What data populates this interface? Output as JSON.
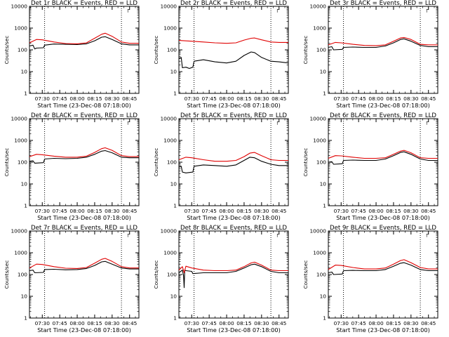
{
  "page": {
    "background": "#ffffff"
  },
  "colors": {
    "events": "#000000",
    "lld": "#e00000",
    "axes": "#000000"
  },
  "chart_data": [
    {
      "type": "line",
      "title": "Det 1r BLACK = Events, RED = LLD",
      "xlabel": "Start Time (23-Dec-08 07:18:00)",
      "ylabel": "Counts/sec",
      "xlim": [
        "07:19",
        "08:53"
      ],
      "ylim": [
        1,
        10000
      ],
      "yscale": "log",
      "grid": false,
      "x_ticks": [
        "07:30",
        "07:45",
        "08:00",
        "08:15",
        "08:30",
        "08:45"
      ],
      "y_ticks": [
        "1",
        "10",
        "100",
        "1000",
        "10000"
      ],
      "vlines_dotted": [
        "07:32",
        "08:38"
      ],
      "corner_mark": "┌",
      "series": [
        {
          "name": "Events",
          "color": "#000000",
          "x": [
            "07:19",
            "07:22",
            "07:23.5",
            "07:25",
            "07:31",
            "07:32",
            "07:40",
            "07:50",
            "08:00",
            "08:08",
            "08:15",
            "08:21",
            "08:24",
            "08:30",
            "08:38",
            "08:45",
            "08:53"
          ],
          "y": [
            150,
            165,
            110,
            120,
            125,
            165,
            185,
            180,
            175,
            190,
            260,
            380,
            400,
            300,
            190,
            170,
            170
          ]
        },
        {
          "name": "LLD",
          "color": "#e00000",
          "x": [
            "07:19",
            "07:25",
            "07:30",
            "07:40",
            "07:50",
            "08:00",
            "08:08",
            "08:15",
            "08:21",
            "08:24",
            "08:30",
            "08:38",
            "08:45",
            "08:53"
          ],
          "y": [
            210,
            300,
            290,
            230,
            195,
            190,
            210,
            340,
            520,
            580,
            420,
            230,
            200,
            200
          ]
        }
      ]
    },
    {
      "type": "line",
      "title": "Det 2r BLACK = Events, RED = LLD",
      "xlabel": "Start Time (23-Dec-08 07:18:00)",
      "ylabel": "Counts/sec",
      "xlim": [
        "07:19",
        "08:53"
      ],
      "ylim": [
        1,
        10000
      ],
      "yscale": "log",
      "grid": false,
      "x_ticks": [
        "07:30",
        "07:45",
        "08:00",
        "08:15",
        "08:30",
        "08:45"
      ],
      "y_ticks": [
        "1",
        "10",
        "100",
        "1000",
        "10000"
      ],
      "vlines_dotted": [
        "07:32",
        "08:38"
      ],
      "corner_mark": "┌",
      "series": [
        {
          "name": "Events",
          "color": "#000000",
          "x": [
            "07:19",
            "07:21",
            "07:22",
            "07:25",
            "07:28",
            "07:31",
            "07:32",
            "07:40",
            "07:50",
            "08:00",
            "08:08",
            "08:15",
            "08:21",
            "08:24",
            "08:30",
            "08:38",
            "08:45",
            "08:53"
          ],
          "y": [
            40,
            45,
            15,
            16,
            14,
            16,
            30,
            35,
            28,
            25,
            30,
            55,
            80,
            75,
            45,
            30,
            28,
            25
          ]
        },
        {
          "name": "LLD",
          "color": "#e00000",
          "x": [
            "07:19",
            "07:30",
            "07:40",
            "07:50",
            "08:00",
            "08:08",
            "08:15",
            "08:21",
            "08:24",
            "08:30",
            "08:38",
            "08:45",
            "08:53"
          ],
          "y": [
            270,
            250,
            230,
            210,
            200,
            210,
            280,
            340,
            350,
            290,
            230,
            220,
            220
          ]
        }
      ]
    },
    {
      "type": "line",
      "title": "Det 3r BLACK = Events, RED = LLD",
      "xlabel": "Start Time (23-Dec-08 07:18:00)",
      "ylabel": "Counts/sec",
      "xlim": [
        "07:19",
        "08:53"
      ],
      "ylim": [
        1,
        10000
      ],
      "yscale": "log",
      "grid": false,
      "x_ticks": [
        "07:30",
        "07:45",
        "08:00",
        "08:15",
        "08:30",
        "08:45"
      ],
      "y_ticks": [
        "1",
        "10",
        "100",
        "1000",
        "10000"
      ],
      "vlines_dotted": [
        "07:32",
        "08:38"
      ],
      "corner_mark": "┌",
      "series": [
        {
          "name": "Events",
          "color": "#000000",
          "x": [
            "07:19",
            "07:22",
            "07:23.5",
            "07:31",
            "07:32",
            "07:40",
            "07:50",
            "08:00",
            "08:08",
            "08:15",
            "08:21",
            "08:24",
            "08:30",
            "08:38",
            "08:45",
            "08:53"
          ],
          "y": [
            130,
            140,
            100,
            105,
            130,
            135,
            130,
            130,
            150,
            210,
            300,
            320,
            250,
            160,
            140,
            140
          ]
        },
        {
          "name": "LLD",
          "color": "#e00000",
          "x": [
            "07:19",
            "07:25",
            "07:30",
            "07:40",
            "07:50",
            "08:00",
            "08:08",
            "08:15",
            "08:21",
            "08:24",
            "08:30",
            "08:38",
            "08:45",
            "08:53"
          ],
          "y": [
            170,
            220,
            210,
            180,
            160,
            155,
            170,
            250,
            350,
            370,
            300,
            180,
            170,
            170
          ]
        }
      ]
    },
    {
      "type": "line",
      "title": "Det 4r BLACK = Events, RED = LLD",
      "xlabel": "Start Time (23-Dec-08 07:18:00)",
      "ylabel": "Counts/sec",
      "xlim": [
        "07:19",
        "08:53"
      ],
      "ylim": [
        1,
        10000
      ],
      "yscale": "log",
      "grid": false,
      "x_ticks": [
        "07:30",
        "07:45",
        "08:00",
        "08:15",
        "08:30",
        "08:45"
      ],
      "y_ticks": [
        "1",
        "10",
        "100",
        "1000",
        "10000"
      ],
      "vlines_dotted": [
        "07:32",
        "08:38"
      ],
      "corner_mark": "┌",
      "series": [
        {
          "name": "Events",
          "color": "#000000",
          "x": [
            "07:19",
            "07:22",
            "07:23.5",
            "07:31",
            "07:32",
            "07:40",
            "07:50",
            "08:00",
            "08:08",
            "08:15",
            "08:21",
            "08:24",
            "08:30",
            "08:38",
            "08:45",
            "08:53"
          ],
          "y": [
            110,
            115,
            90,
            95,
            140,
            150,
            145,
            150,
            170,
            230,
            320,
            340,
            270,
            170,
            160,
            160
          ]
        },
        {
          "name": "LLD",
          "color": "#e00000",
          "x": [
            "07:19",
            "07:25",
            "07:30",
            "07:40",
            "07:50",
            "08:00",
            "08:08",
            "08:15",
            "08:21",
            "08:24",
            "08:30",
            "08:38",
            "08:45",
            "08:53"
          ],
          "y": [
            180,
            230,
            220,
            190,
            170,
            170,
            190,
            280,
            420,
            460,
            350,
            200,
            180,
            180
          ]
        }
      ]
    },
    {
      "type": "line",
      "title": "Det 5r BLACK = Events, RED = LLD",
      "xlabel": "Start Time (23-Dec-08 07:18:00)",
      "ylabel": "Counts/sec",
      "xlim": [
        "07:19",
        "08:53"
      ],
      "ylim": [
        1,
        10000
      ],
      "yscale": "log",
      "grid": false,
      "x_ticks": [
        "07:30",
        "07:45",
        "08:00",
        "08:15",
        "08:30",
        "08:45"
      ],
      "y_ticks": [
        "1",
        "10",
        "100",
        "1000",
        "10000"
      ],
      "vlines_dotted": [
        "07:32",
        "08:38"
      ],
      "corner_mark": "┌",
      "series": [
        {
          "name": "Events",
          "color": "#000000",
          "x": [
            "07:19",
            "07:21",
            "07:22",
            "07:25",
            "07:31",
            "07:32",
            "07:40",
            "07:50",
            "08:00",
            "08:08",
            "08:15",
            "08:20",
            "08:24",
            "08:30",
            "08:38",
            "08:45",
            "08:53"
          ],
          "y": [
            60,
            65,
            35,
            32,
            35,
            65,
            75,
            70,
            65,
            75,
            120,
            170,
            160,
            110,
            80,
            70,
            70
          ]
        },
        {
          "name": "LLD",
          "color": "#e00000",
          "x": [
            "07:19",
            "07:25",
            "07:30",
            "07:40",
            "07:50",
            "08:00",
            "08:08",
            "08:15",
            "08:20",
            "08:24",
            "08:30",
            "08:38",
            "08:45",
            "08:53"
          ],
          "y": [
            130,
            170,
            160,
            130,
            110,
            110,
            120,
            180,
            260,
            280,
            200,
            130,
            120,
            120
          ]
        }
      ]
    },
    {
      "type": "line",
      "title": "Det 6r BLACK = Events, RED = LLD",
      "xlabel": "Start Time (23-Dec-08 07:18:00)",
      "ylabel": "Counts/sec",
      "xlim": [
        "07:19",
        "08:53"
      ],
      "ylim": [
        1,
        10000
      ],
      "yscale": "log",
      "grid": false,
      "x_ticks": [
        "07:30",
        "07:45",
        "08:00",
        "08:15",
        "08:30",
        "08:45"
      ],
      "y_ticks": [
        "1",
        "10",
        "100",
        "1000",
        "10000"
      ],
      "vlines_dotted": [
        "07:32",
        "08:38"
      ],
      "corner_mark": "┌",
      "series": [
        {
          "name": "Events",
          "color": "#000000",
          "x": [
            "07:19",
            "07:22",
            "07:23.5",
            "07:31",
            "07:32",
            "07:40",
            "07:50",
            "08:00",
            "08:08",
            "08:15",
            "08:21",
            "08:24",
            "08:30",
            "08:38",
            "08:45",
            "08:53"
          ],
          "y": [
            100,
            105,
            80,
            85,
            120,
            125,
            120,
            120,
            140,
            200,
            280,
            300,
            230,
            140,
            120,
            120
          ]
        },
        {
          "name": "LLD",
          "color": "#e00000",
          "x": [
            "07:19",
            "07:25",
            "07:30",
            "07:40",
            "07:50",
            "08:00",
            "08:08",
            "08:15",
            "08:21",
            "08:24",
            "08:30",
            "08:38",
            "08:45",
            "08:53"
          ],
          "y": [
            150,
            200,
            195,
            170,
            150,
            150,
            160,
            230,
            320,
            350,
            270,
            160,
            150,
            150
          ]
        }
      ]
    },
    {
      "type": "line",
      "title": "Det 7r BLACK = Events, RED = LLD",
      "xlabel": "Start Time (23-Dec-08 07:18:00)",
      "ylabel": "Counts/sec",
      "xlim": [
        "07:19",
        "08:53"
      ],
      "ylim": [
        1,
        10000
      ],
      "yscale": "log",
      "grid": false,
      "x_ticks": [
        "07:30",
        "07:45",
        "08:00",
        "08:15",
        "08:30",
        "08:45"
      ],
      "y_ticks": [
        "1",
        "10",
        "100",
        "1000",
        "10000"
      ],
      "vlines_dotted": [
        "07:32",
        "08:38"
      ],
      "corner_mark": "┌",
      "series": [
        {
          "name": "Events",
          "color": "#000000",
          "x": [
            "07:19",
            "07:22",
            "07:23.5",
            "07:31",
            "07:32",
            "07:40",
            "07:50",
            "08:00",
            "08:08",
            "08:15",
            "08:21",
            "08:24",
            "08:30",
            "08:38",
            "08:45",
            "08:53"
          ],
          "y": [
            150,
            160,
            120,
            125,
            170,
            175,
            165,
            170,
            190,
            260,
            380,
            400,
            300,
            200,
            180,
            180
          ]
        },
        {
          "name": "LLD",
          "color": "#e00000",
          "x": [
            "07:19",
            "07:25",
            "07:30",
            "07:40",
            "07:50",
            "08:00",
            "08:08",
            "08:15",
            "08:21",
            "08:24",
            "08:30",
            "08:38",
            "08:45",
            "08:53"
          ],
          "y": [
            200,
            300,
            290,
            230,
            195,
            190,
            210,
            330,
            500,
            550,
            400,
            230,
            200,
            200
          ]
        }
      ]
    },
    {
      "type": "line",
      "title": "Det 8r BLACK = Events, RED = LLD",
      "xlabel": "Start Time (23-Dec-08 07:18:00)",
      "ylabel": "Counts/sec",
      "xlim": [
        "07:19",
        "08:53"
      ],
      "ylim": [
        1,
        10000
      ],
      "yscale": "log",
      "grid": false,
      "x_ticks": [
        "07:30",
        "07:45",
        "08:00",
        "08:15",
        "08:30",
        "08:45"
      ],
      "y_ticks": [
        "1",
        "10",
        "100",
        "1000",
        "10000"
      ],
      "vlines_dotted": [
        "07:32",
        "08:38"
      ],
      "corner_mark": "┌",
      "series": [
        {
          "name": "Events",
          "color": "#000000",
          "x": [
            "07:19",
            "07:22",
            "07:23",
            "07:23.5",
            "07:24",
            "07:25",
            "07:30",
            "07:31",
            "07:40",
            "07:50",
            "08:00",
            "08:08",
            "08:15",
            "08:21",
            "08:24",
            "08:30",
            "08:38",
            "08:45",
            "08:53"
          ],
          "y": [
            120,
            160,
            90,
            25,
            160,
            150,
            140,
            110,
            120,
            120,
            120,
            140,
            200,
            280,
            300,
            230,
            140,
            120,
            120
          ]
        },
        {
          "name": "LLD",
          "color": "#e00000",
          "x": [
            "07:19",
            "07:22",
            "07:23.5",
            "07:25",
            "07:30",
            "07:40",
            "07:50",
            "08:00",
            "08:08",
            "08:15",
            "08:21",
            "08:24",
            "08:30",
            "08:38",
            "08:45",
            "08:53"
          ],
          "y": [
            160,
            230,
            120,
            240,
            200,
            160,
            150,
            150,
            160,
            230,
            340,
            370,
            270,
            160,
            150,
            150
          ]
        }
      ]
    },
    {
      "type": "line",
      "title": "Det 9r BLACK = Events, RED = LLD",
      "xlabel": "Start Time (23-Dec-08 07:18:00)",
      "ylabel": "Counts/sec",
      "xlim": [
        "07:19",
        "08:53"
      ],
      "ylim": [
        1,
        10000
      ],
      "yscale": "log",
      "grid": false,
      "x_ticks": [
        "07:30",
        "07:45",
        "08:00",
        "08:15",
        "08:30",
        "08:45"
      ],
      "y_ticks": [
        "1",
        "10",
        "100",
        "1000",
        "10000"
      ],
      "vlines_dotted": [
        "07:32",
        "08:38"
      ],
      "corner_mark": "┌",
      "series": [
        {
          "name": "Events",
          "color": "#000000",
          "x": [
            "07:19",
            "07:22",
            "07:23.5",
            "07:31",
            "07:32",
            "07:40",
            "07:50",
            "08:00",
            "08:08",
            "08:15",
            "08:21",
            "08:24",
            "08:30",
            "08:38",
            "08:45",
            "08:53"
          ],
          "y": [
            120,
            130,
            100,
            105,
            150,
            155,
            150,
            150,
            170,
            240,
            330,
            350,
            270,
            170,
            150,
            150
          ]
        },
        {
          "name": "LLD",
          "color": "#e00000",
          "x": [
            "07:19",
            "07:25",
            "07:30",
            "07:40",
            "07:50",
            "08:00",
            "08:08",
            "08:15",
            "08:21",
            "08:24",
            "08:30",
            "08:38",
            "08:45",
            "08:53"
          ],
          "y": [
            170,
            270,
            260,
            210,
            180,
            180,
            200,
            300,
            440,
            480,
            350,
            210,
            180,
            180
          ]
        }
      ]
    }
  ]
}
